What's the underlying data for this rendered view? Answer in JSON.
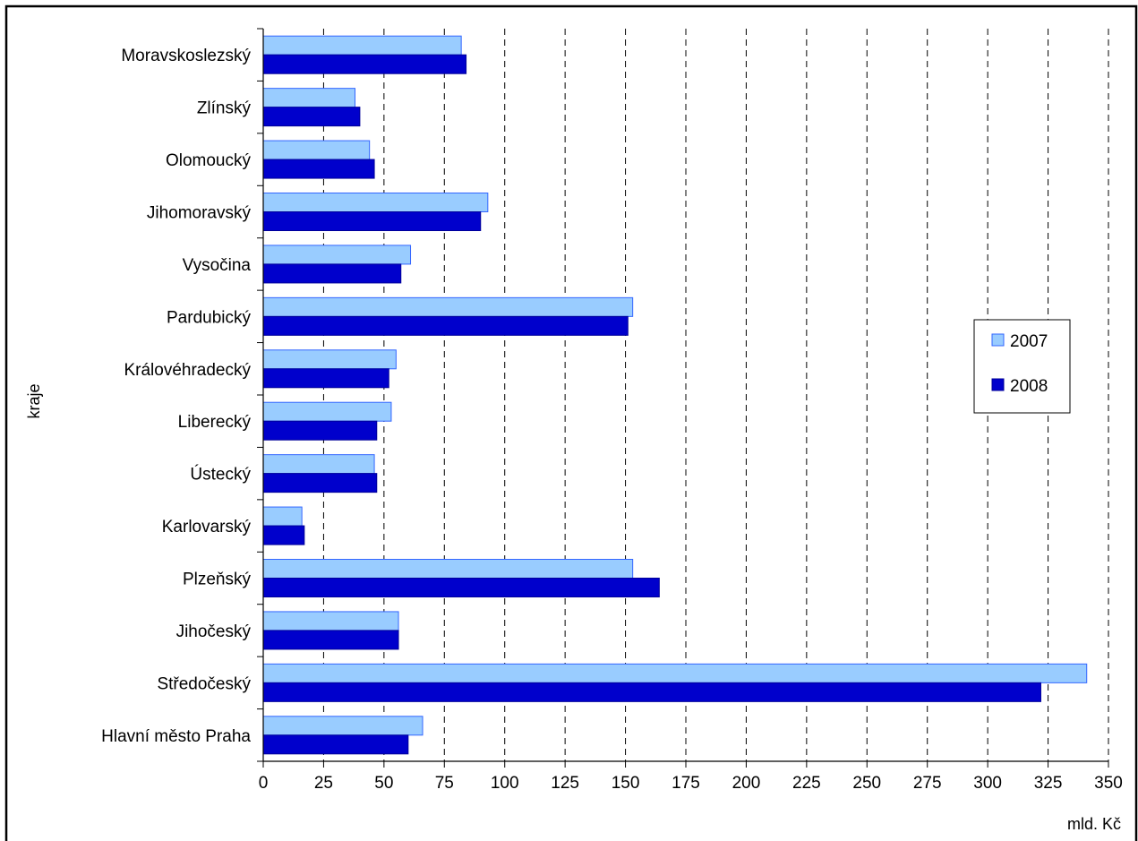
{
  "chart_data": {
    "type": "bar",
    "orientation": "horizontal",
    "title": "",
    "xlabel": "mld. Kč",
    "ylabel": "kraje",
    "xlim": [
      0,
      350
    ],
    "x_ticks": [
      0,
      25,
      50,
      75,
      100,
      125,
      150,
      175,
      200,
      225,
      250,
      275,
      300,
      325,
      350
    ],
    "grid": "vertical-dashed",
    "legend_position": "right",
    "categories": [
      "Moravskoslezský",
      "Zlínský",
      "Olomoucký",
      "Jihomoravský",
      "Vysočina",
      "Pardubický",
      "Královéhradecký",
      "Liberecký",
      "Ústecký",
      "Karlovarský",
      "Plzeňský",
      "Jihočeský",
      "Středočeský",
      "Hlavní město Praha"
    ],
    "series": [
      {
        "name": "2007",
        "color": "#99CCFF",
        "stroke": "#3366FF",
        "values": [
          82,
          38,
          44,
          93,
          61,
          153,
          55,
          53,
          46,
          16,
          153,
          56,
          341,
          66
        ]
      },
      {
        "name": "2008",
        "color": "#0000CC",
        "stroke": "#000099",
        "values": [
          84,
          40,
          46,
          90,
          57,
          151,
          52,
          47,
          47,
          17,
          164,
          56,
          322,
          60
        ]
      }
    ]
  }
}
